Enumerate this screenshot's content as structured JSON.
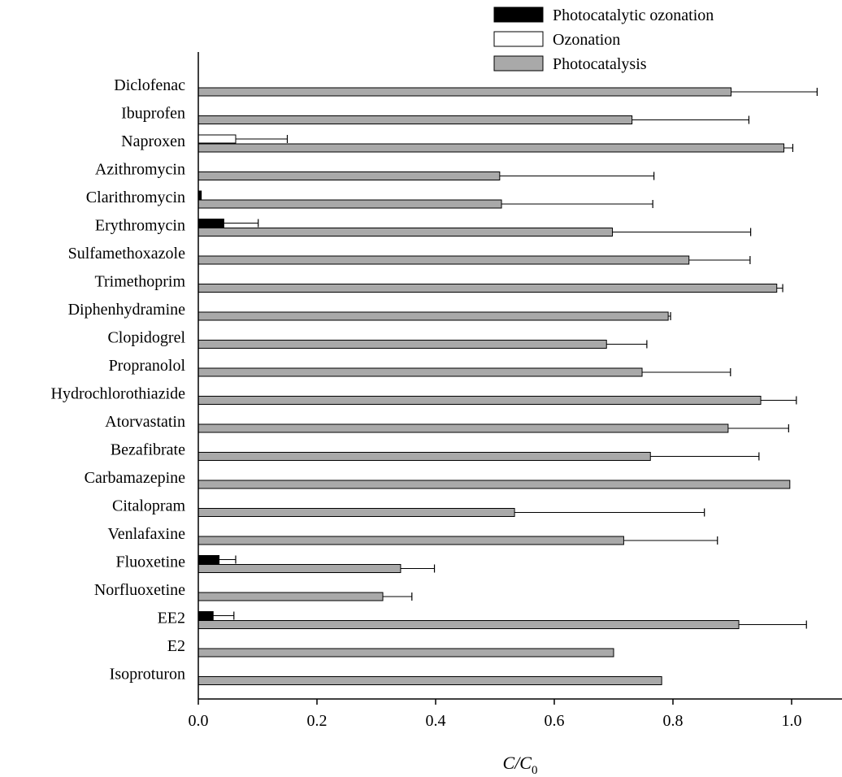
{
  "chart_data": {
    "type": "bar",
    "orientation": "horizontal",
    "title": "",
    "xlabel": "C/C",
    "xlabel_subscript": "0",
    "ylabel": "",
    "xlim": [
      0,
      1.05
    ],
    "xticks": [
      "0.0",
      "0.2",
      "0.4",
      "0.6",
      "0.8",
      "1.0"
    ],
    "xtick_values": [
      0,
      0.2,
      0.4,
      0.6,
      0.8,
      1.0
    ],
    "grid": false,
    "legend_position": "top-right",
    "categories": [
      "Diclofenac",
      "Ibuprofen",
      "Naproxen",
      "Azithromycin",
      "Clarithromycin",
      "Erythromycin",
      "Sulfamethoxazole",
      "Trimethoprim",
      "Diphenhydramine",
      "Clopidogrel",
      "Propranolol",
      "Hydrochlorothiazide",
      "Atorvastatin",
      "Bezafibrate",
      "Carbamazepine",
      "Citalopram",
      "Venlafaxine",
      "Fluoxetine",
      "Norfluoxetine",
      "EE2",
      "E2",
      "Isoproturon"
    ],
    "series": [
      {
        "name": "Photocatalytic ozonation",
        "color": "#000000",
        "values": [
          0,
          0,
          0,
          0,
          0.005,
          0.043,
          0,
          0,
          0,
          0,
          0,
          0,
          0,
          0,
          0,
          0,
          0,
          0.035,
          0,
          0.025,
          0,
          0
        ],
        "errors": [
          0,
          0,
          0,
          0,
          0,
          0.058,
          0,
          0,
          0,
          0,
          0,
          0,
          0,
          0,
          0,
          0,
          0,
          0.028,
          0,
          0.035,
          0,
          0
        ]
      },
      {
        "name": "Ozonation",
        "color": "#ffffff",
        "values": [
          0,
          0,
          0.063,
          0,
          0,
          0,
          0,
          0,
          0,
          0,
          0,
          0,
          0,
          0,
          0,
          0,
          0,
          0,
          0,
          0,
          0,
          0
        ],
        "errors": [
          0,
          0,
          0.087,
          0,
          0,
          0,
          0,
          0,
          0,
          0,
          0,
          0,
          0,
          0,
          0,
          0,
          0,
          0,
          0,
          0,
          0,
          0
        ]
      },
      {
        "name": "Photocatalysis",
        "color": "#a9a9a9",
        "values": [
          0.898,
          0.731,
          0.987,
          0.508,
          0.511,
          0.698,
          0.827,
          0.975,
          0.792,
          0.688,
          0.748,
          0.948,
          0.893,
          0.762,
          0.997,
          0.533,
          0.717,
          0.341,
          0.311,
          0.911,
          0.7,
          0.781
        ],
        "errors": [
          0.145,
          0.197,
          0.015,
          0.26,
          0.255,
          0.233,
          0.103,
          0.01,
          0.004,
          0.068,
          0.149,
          0.06,
          0.102,
          0.183,
          0,
          0.32,
          0.158,
          0.057,
          0.049,
          0.114,
          0,
          0
        ]
      }
    ]
  }
}
